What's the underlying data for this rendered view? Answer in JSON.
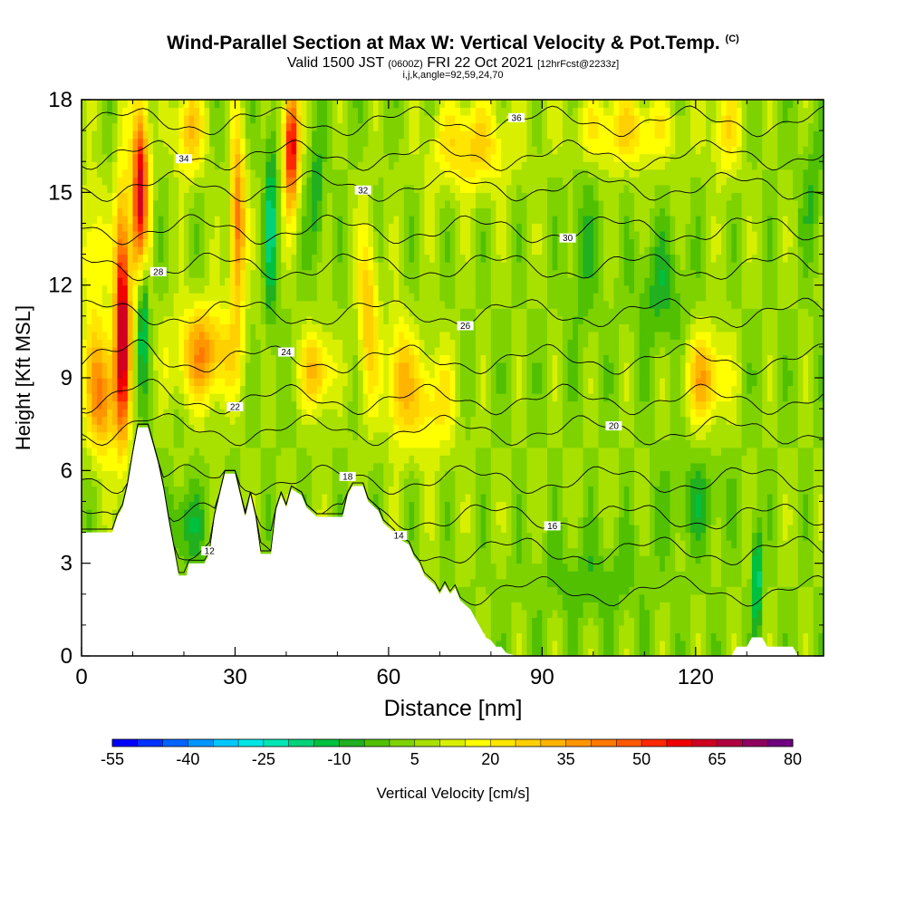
{
  "chart_data": {
    "type": "heatmap",
    "title": "Wind-Parallel Section at Max W: Vertical Velocity & Pot.Temp.",
    "title_mark": "(C)",
    "subtitle_valid": "Valid 1500 JST",
    "subtitle_utc": "(0600Z)",
    "subtitle_date": "FRI 22 Oct 2021",
    "subtitle_fcst": "[12hrFcst@2233z]",
    "subtitle2": "i,j,k,angle=92,59,24,70",
    "xlabel": "Distance [nm]",
    "ylabel": "Height [Kft MSL]",
    "xlim": [
      0,
      145
    ],
    "ylim": [
      0,
      18
    ],
    "x_ticks": [
      "0",
      "30",
      "60",
      "90",
      "120"
    ],
    "x_tick_values": [
      0,
      30,
      60,
      90,
      120
    ],
    "y_ticks": [
      "0",
      "3",
      "6",
      "9",
      "12",
      "15",
      "18"
    ],
    "y_tick_values": [
      0,
      3,
      6,
      9,
      12,
      15,
      18
    ],
    "colorbar": {
      "label": "Vertical Velocity [cm/s]",
      "tick_labels": [
        "-55",
        "-40",
        "-25",
        "-10",
        "5",
        "20",
        "35",
        "50",
        "65",
        "80"
      ],
      "bins": [
        -55,
        -50,
        -45,
        -40,
        -35,
        -30,
        -25,
        -20,
        -15,
        -10,
        -5,
        0,
        5,
        10,
        15,
        20,
        25,
        30,
        35,
        40,
        45,
        50,
        55,
        60,
        65,
        70,
        75,
        80
      ],
      "colors": [
        "#0000ff",
        "#0032ff",
        "#0064ff",
        "#0096ff",
        "#00c8ff",
        "#00e6e6",
        "#00e6b4",
        "#00d27a",
        "#00c040",
        "#20b020",
        "#50c000",
        "#7ed200",
        "#a8e000",
        "#d8f000",
        "#ffff00",
        "#ffe600",
        "#ffd000",
        "#ffb400",
        "#ff9600",
        "#ff7800",
        "#ff5a00",
        "#ff2800",
        "#f00000",
        "#d00020",
        "#b00040",
        "#900060",
        "#700080"
      ]
    },
    "background_value_cm_s": 5,
    "theta_contours": [
      {
        "label": "12",
        "level_kft": 2.1
      },
      {
        "label": "14",
        "level_kft": 3.4
      },
      {
        "label": "16",
        "level_kft": 4.5
      },
      {
        "label": "18",
        "level_kft": 5.7
      },
      {
        "label": "20",
        "level_kft": 7.3
      },
      {
        "label": "22",
        "level_kft": 8.3
      },
      {
        "label": "24",
        "level_kft": 9.6
      },
      {
        "label": "26",
        "level_kft": 11.1
      },
      {
        "label": "28",
        "level_kft": 12.6
      },
      {
        "label": "30",
        "level_kft": 13.8
      },
      {
        "label": "32",
        "level_kft": 15.2
      },
      {
        "label": "34",
        "level_kft": 16.2
      },
      {
        "label": "36",
        "level_kft": 17.3
      }
    ],
    "terrain_kft": [
      [
        0,
        4.0
      ],
      [
        6,
        4.0
      ],
      [
        7,
        4.5
      ],
      [
        8,
        4.8
      ],
      [
        9,
        5.5
      ],
      [
        10,
        6.5
      ],
      [
        11,
        7.4
      ],
      [
        13,
        7.4
      ],
      [
        14,
        6.8
      ],
      [
        15,
        6.2
      ],
      [
        16,
        5.4
      ],
      [
        17,
        4.4
      ],
      [
        18,
        3.5
      ],
      [
        19,
        2.6
      ],
      [
        20.5,
        2.6
      ],
      [
        21,
        3.0
      ],
      [
        24,
        3.0
      ],
      [
        25,
        3.3
      ],
      [
        26,
        4.5
      ],
      [
        27,
        5.2
      ],
      [
        28,
        5.9
      ],
      [
        30,
        5.9
      ],
      [
        31,
        5.2
      ],
      [
        32,
        4.5
      ],
      [
        33,
        5.2
      ],
      [
        34,
        4.5
      ],
      [
        35,
        3.3
      ],
      [
        37,
        3.3
      ],
      [
        38,
        4.7
      ],
      [
        39,
        5.2
      ],
      [
        40,
        4.8
      ],
      [
        41,
        5.4
      ],
      [
        43,
        5.2
      ],
      [
        44,
        4.8
      ],
      [
        46,
        4.5
      ],
      [
        51,
        4.5
      ],
      [
        52,
        5.2
      ],
      [
        53,
        5.5
      ],
      [
        55,
        5.5
      ],
      [
        56,
        5.0
      ],
      [
        58,
        4.7
      ],
      [
        59,
        4.3
      ],
      [
        61,
        4.0
      ],
      [
        62,
        3.8
      ],
      [
        64,
        3.6
      ],
      [
        65,
        3.2
      ],
      [
        66,
        3.0
      ],
      [
        67,
        2.6
      ],
      [
        69,
        2.3
      ],
      [
        70,
        2.0
      ],
      [
        71,
        2.3
      ],
      [
        72,
        2.0
      ],
      [
        73,
        2.2
      ],
      [
        74,
        1.8
      ],
      [
        76,
        1.5
      ],
      [
        77,
        1.2
      ],
      [
        78,
        0.9
      ],
      [
        79,
        0.6
      ],
      [
        80,
        0.5
      ],
      [
        81,
        0.3
      ],
      [
        82,
        0.3
      ],
      [
        83,
        0.1
      ],
      [
        85,
        0.0
      ],
      [
        127,
        0.0
      ],
      [
        128,
        0.3
      ],
      [
        130,
        0.3
      ],
      [
        131,
        0.6
      ],
      [
        133,
        0.6
      ],
      [
        134,
        0.3
      ],
      [
        139,
        0.3
      ],
      [
        140,
        0.0
      ],
      [
        145,
        0.0
      ]
    ],
    "w_features": [
      {
        "x": 8,
        "z": 11,
        "sx": 1.5,
        "sz": 4,
        "w": 62
      },
      {
        "x": 11.5,
        "z": 15,
        "sx": 1.6,
        "sz": 3,
        "w": 60
      },
      {
        "x": 12,
        "z": 11.5,
        "sx": 1.0,
        "sz": 2.5,
        "w": -30
      },
      {
        "x": 4,
        "z": 8.5,
        "sx": 3,
        "sz": 2,
        "w": 38
      },
      {
        "x": 24,
        "z": 9.8,
        "sx": 6,
        "sz": 1.6,
        "w": 32
      },
      {
        "x": 21,
        "z": 17,
        "sx": 3,
        "sz": 1.5,
        "w": 25
      },
      {
        "x": 30.5,
        "z": 14,
        "sx": 1.5,
        "sz": 3,
        "w": 40
      },
      {
        "x": 37,
        "z": 14,
        "sx": 1.2,
        "sz": 3.5,
        "w": -20
      },
      {
        "x": 41,
        "z": 16.5,
        "sx": 1.5,
        "sz": 2,
        "w": 58
      },
      {
        "x": 46,
        "z": 9.2,
        "sx": 3,
        "sz": 1.3,
        "w": 28
      },
      {
        "x": 46,
        "z": 14.8,
        "sx": 1.5,
        "sz": 2,
        "w": -15
      },
      {
        "x": 56,
        "z": 11,
        "sx": 2,
        "sz": 3,
        "w": 25
      },
      {
        "x": 62,
        "z": 9,
        "sx": 2.5,
        "sz": 2,
        "w": 25
      },
      {
        "x": 68,
        "z": 8.2,
        "sx": 5,
        "sz": 1.8,
        "w": 20
      },
      {
        "x": 76,
        "z": 16.5,
        "sx": 8,
        "sz": 1.5,
        "w": 22
      },
      {
        "x": 98,
        "z": 13,
        "sx": 3,
        "sz": 3,
        "w": -8
      },
      {
        "x": 106,
        "z": 17,
        "sx": 10,
        "sz": 1.2,
        "w": 20
      },
      {
        "x": 113,
        "z": 11.8,
        "sx": 5,
        "sz": 1.8,
        "w": -12
      },
      {
        "x": 122,
        "z": 9,
        "sx": 4,
        "sz": 1.5,
        "w": 28
      },
      {
        "x": 126,
        "z": 17,
        "sx": 3,
        "sz": 1.5,
        "w": 18
      },
      {
        "x": 132,
        "z": 2.5,
        "sx": 0.8,
        "sz": 1.8,
        "w": -30
      },
      {
        "x": 120,
        "z": 5,
        "sx": 6,
        "sz": 1.5,
        "w": -10
      },
      {
        "x": 100,
        "z": 2.5,
        "sx": 12,
        "sz": 1.5,
        "w": -8
      },
      {
        "x": 20,
        "z": 4.2,
        "sx": 4,
        "sz": 1.2,
        "w": -15
      },
      {
        "x": 2,
        "z": 13,
        "sx": 2.5,
        "sz": 2.5,
        "w": 18
      },
      {
        "x": 143,
        "z": 15,
        "sx": 2,
        "sz": 2,
        "w": -10
      }
    ]
  }
}
